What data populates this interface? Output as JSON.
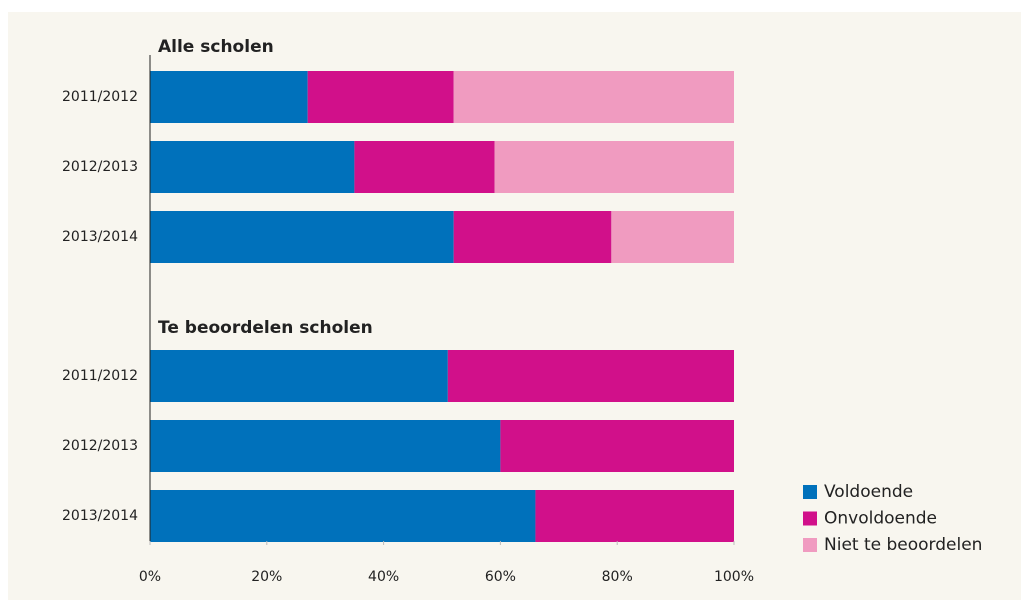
{
  "chart_data": {
    "type": "stacked-barh",
    "group_titles": [
      "Alle scholen",
      "Te beoordelen scholen"
    ],
    "categories": [
      [
        "2011/2012",
        "2012/2013",
        "2013/2014"
      ],
      [
        "2011/2012",
        "2012/2013",
        "2013/2014"
      ]
    ],
    "series": [
      {
        "name": "Voldoende",
        "color": "#0071bb",
        "values": [
          [
            27,
            35,
            52
          ],
          [
            51,
            60,
            66
          ]
        ]
      },
      {
        "name": "Onvoldoende",
        "color": "#d1108a",
        "values": [
          [
            25,
            24,
            27
          ],
          [
            49,
            40,
            34
          ]
        ]
      },
      {
        "name": "Niet te beoordelen",
        "color": "#f09bc0",
        "values": [
          [
            48,
            41,
            21
          ],
          [
            null,
            null,
            null
          ]
        ]
      }
    ],
    "xlim": [
      0,
      100
    ],
    "xticks": [
      {
        "value": 0,
        "label": "0%"
      },
      {
        "value": 20,
        "label": "20%"
      },
      {
        "value": 40,
        "label": "40%"
      },
      {
        "value": 60,
        "label": "60%"
      },
      {
        "value": 80,
        "label": "80%"
      },
      {
        "value": 100,
        "label": "100%"
      }
    ],
    "legend": "lower right"
  }
}
